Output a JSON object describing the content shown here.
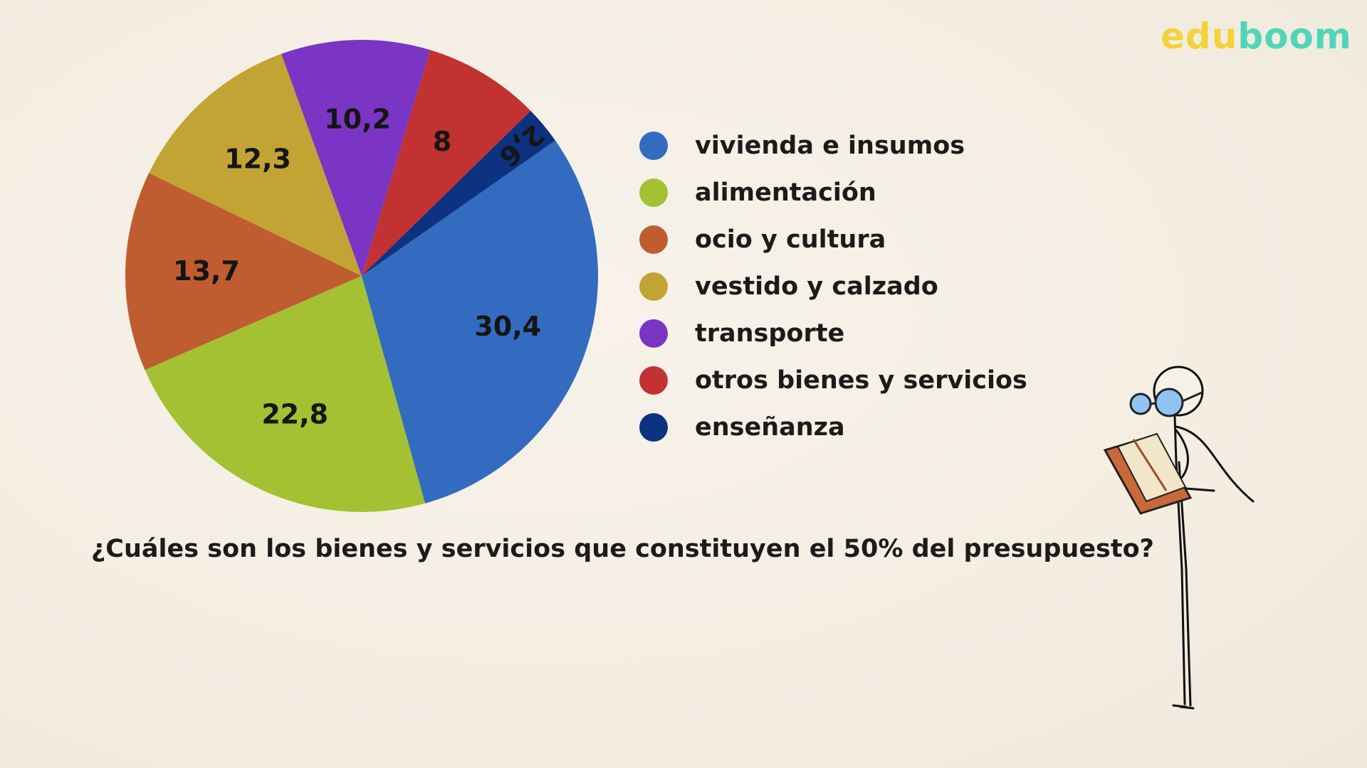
{
  "brand": {
    "part1": "edu",
    "part2": "boom"
  },
  "chart_data": {
    "type": "pie",
    "title": "",
    "categories": [
      "vivienda e insumos",
      "alimentación",
      "ocio y cultura",
      "vestido y calzado",
      "transporte",
      "otros bienes y servicios",
      "enseñanza"
    ],
    "values": [
      30.4,
      22.8,
      13.7,
      12.3,
      10.2,
      8,
      2.6
    ],
    "value_labels": [
      "30,4",
      "22,8",
      "13,7",
      "12,3",
      "10,2",
      "8",
      "2,6"
    ],
    "colors": [
      "#336bc0",
      "#a3c132",
      "#bf5d30",
      "#c2a434",
      "#7a35c4",
      "#c23232",
      "#0c3280"
    ],
    "start_angle_deg": -35,
    "legend": "right"
  },
  "question": "¿Cuáles son los bienes y servicios que constituyen el 50% del presupuesto?"
}
